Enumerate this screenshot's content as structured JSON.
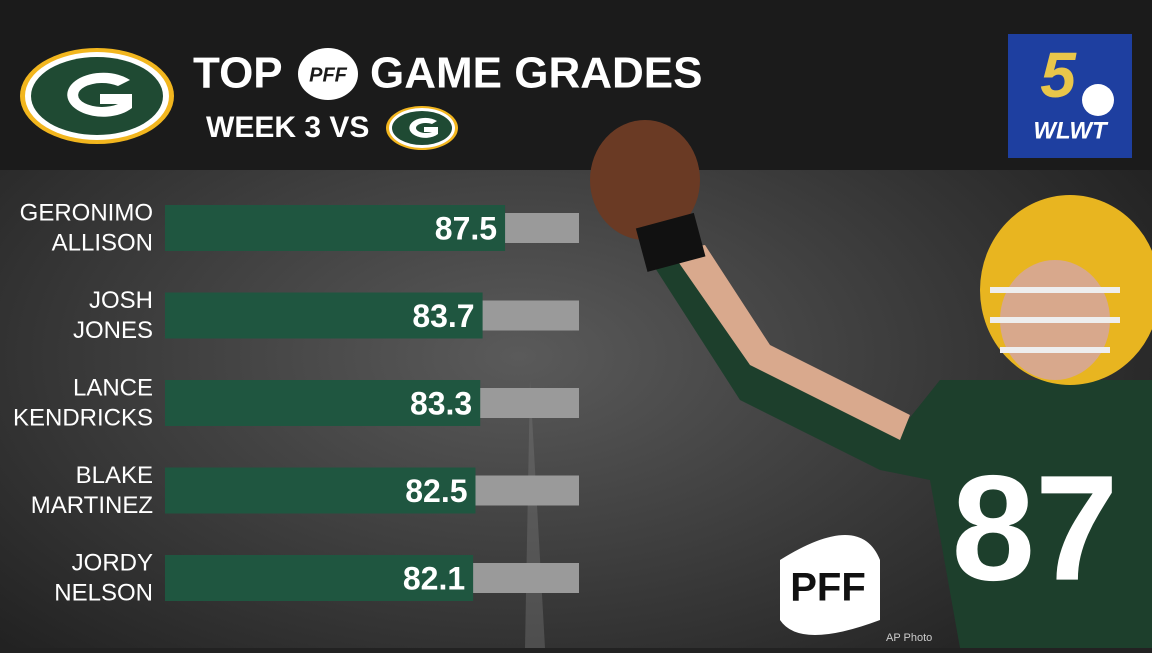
{
  "chart_data": {
    "type": "bar",
    "orientation": "horizontal",
    "title_parts": [
      "TOP",
      "GAME GRADES"
    ],
    "title_logo": "PFF",
    "subtitle": "WEEK 3 VS",
    "categories": [
      [
        "GERONIMO",
        "ALLISON"
      ],
      [
        "JOSH",
        "JONES"
      ],
      [
        "LANCE",
        "KENDRICKS"
      ],
      [
        "BLAKE",
        "MARTINEZ"
      ],
      [
        "JORDY",
        "NELSON"
      ]
    ],
    "values": [
      87.5,
      83.7,
      83.3,
      82.5,
      82.1
    ],
    "color": "#1f5640",
    "track_color": "#9a9a9a",
    "xlim": [
      30,
      100
    ],
    "station": {
      "number": "5",
      "call": "WLWT"
    },
    "brand": "PFF",
    "credit": "AP Photo"
  }
}
